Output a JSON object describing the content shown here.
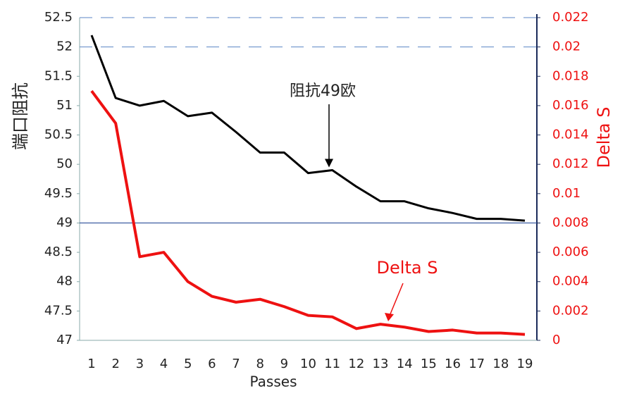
{
  "chart_data": {
    "type": "line",
    "x_label": "Passes",
    "y_label": "端口阻抗",
    "y2_label": "Delta S",
    "categories": [
      "1",
      "2",
      "3",
      "4",
      "5",
      "6",
      "7",
      "8",
      "9",
      "10",
      "11",
      "12",
      "13",
      "14",
      "15",
      "16",
      "17",
      "18",
      "19"
    ],
    "series": [
      {
        "name": "阻抗49欧",
        "color": "#000000",
        "axis": "y",
        "values": [
          52.2,
          51.13,
          51.0,
          51.08,
          50.82,
          50.88,
          50.55,
          50.2,
          50.2,
          49.85,
          49.9,
          49.62,
          49.37,
          49.37,
          49.25,
          49.17,
          49.07,
          49.07,
          49.04
        ]
      },
      {
        "name": "Delta S",
        "color": "#ee1111",
        "axis": "y2",
        "values": [
          0.017,
          0.0148,
          0.0057,
          0.006,
          0.004,
          0.003,
          0.0026,
          0.0028,
          0.0023,
          0.0017,
          0.0016,
          0.0008,
          0.0011,
          0.0009,
          0.0006,
          0.0007,
          0.0005,
          0.0005,
          0.0004
        ]
      }
    ],
    "ylim": [
      47,
      52.5
    ],
    "yticks": [
      47,
      47.5,
      48,
      48.5,
      49,
      49.5,
      50,
      50.5,
      51,
      51.5,
      52,
      52.5
    ],
    "y2lim": [
      0,
      0.022
    ],
    "y2ticks": [
      0,
      0.002,
      0.004,
      0.006,
      0.008,
      0.01,
      0.012,
      0.014,
      0.016,
      0.018,
      0.02,
      0.022
    ],
    "reference_line": 49,
    "y2_color": "#ee1111"
  }
}
